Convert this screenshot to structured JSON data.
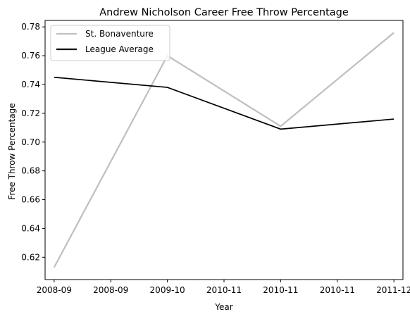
{
  "chart_data": {
    "type": "line",
    "title": "Andrew Nicholson  Career Free Throw Percentage",
    "xlabel": "Year",
    "ylabel": "Free Throw Percentage",
    "x": [
      0,
      1,
      2,
      3
    ],
    "xtick_labels": [
      "2008-09",
      "2008-09",
      "2009-10",
      "2010-11",
      "2010-11",
      "2010-11",
      "2011-12"
    ],
    "xtick_values": [
      0,
      0.5,
      1,
      1.5,
      2,
      2.5,
      3
    ],
    "xlim": [
      -0.08,
      3.08
    ],
    "ylim": [
      0.6045,
      0.7845
    ],
    "yticks": [
      0.62,
      0.64,
      0.66,
      0.68,
      0.7,
      0.72,
      0.74,
      0.76,
      0.78
    ],
    "ytick_labels": [
      "0.62",
      "0.64",
      "0.66",
      "0.68",
      "0.70",
      "0.72",
      "0.74",
      "0.76",
      "0.78"
    ],
    "grid": false,
    "legend_position": "top-left",
    "series": [
      {
        "name": "St. Bonaventure",
        "values": [
          0.613,
          0.76,
          0.711,
          0.776
        ],
        "color": "#bfbfbf"
      },
      {
        "name": "League Average",
        "values": [
          0.745,
          0.738,
          0.709,
          0.716
        ],
        "color": "#000000"
      }
    ]
  }
}
